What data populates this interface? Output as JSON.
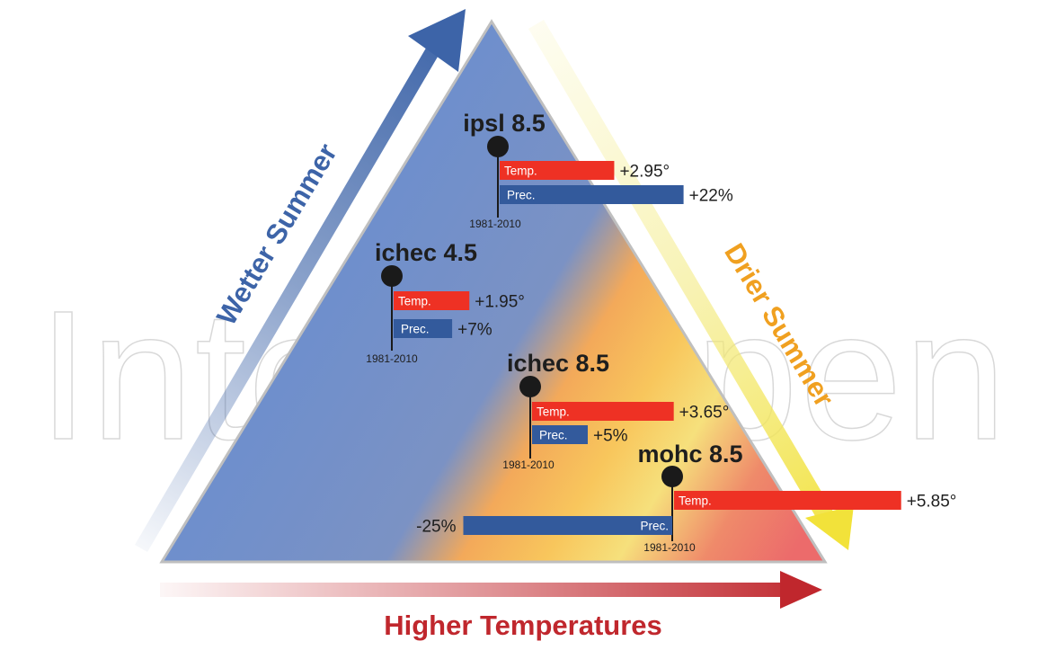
{
  "watermark": "IntechOpen",
  "axes": {
    "left_label": "Wetter Summer",
    "right_label": "Drier Summer",
    "bottom_label": "Higher Temperatures",
    "left_color": "#3d64a8",
    "right_color": "#f0a020",
    "bottom_color": "#c0272d"
  },
  "series_labels": {
    "temp": "Temp.",
    "prec": "Prec."
  },
  "colors": {
    "temp": "#ee3124",
    "prec": "#335a9c",
    "pin": "#1a1a1a"
  },
  "scenarios": [
    {
      "name": "ipsl 8.5",
      "baseline": "1981-2010",
      "temp_text": "+2.95°",
      "prec_text": "+22%",
      "temp_value": 2.95,
      "prec_value": 22
    },
    {
      "name": "ichec 4.5",
      "baseline": "1981-2010",
      "temp_text": "+1.95°",
      "prec_text": "+7%",
      "temp_value": 1.95,
      "prec_value": 7
    },
    {
      "name": "ichec 8.5",
      "baseline": "1981-2010",
      "temp_text": "+3.65°",
      "prec_text": "+5%",
      "temp_value": 3.65,
      "prec_value": 5
    },
    {
      "name": "mohc 8.5",
      "baseline": "1981-2010",
      "temp_text": "+5.85°",
      "prec_text": "-25%",
      "temp_value": 5.85,
      "prec_value": -25
    }
  ]
}
